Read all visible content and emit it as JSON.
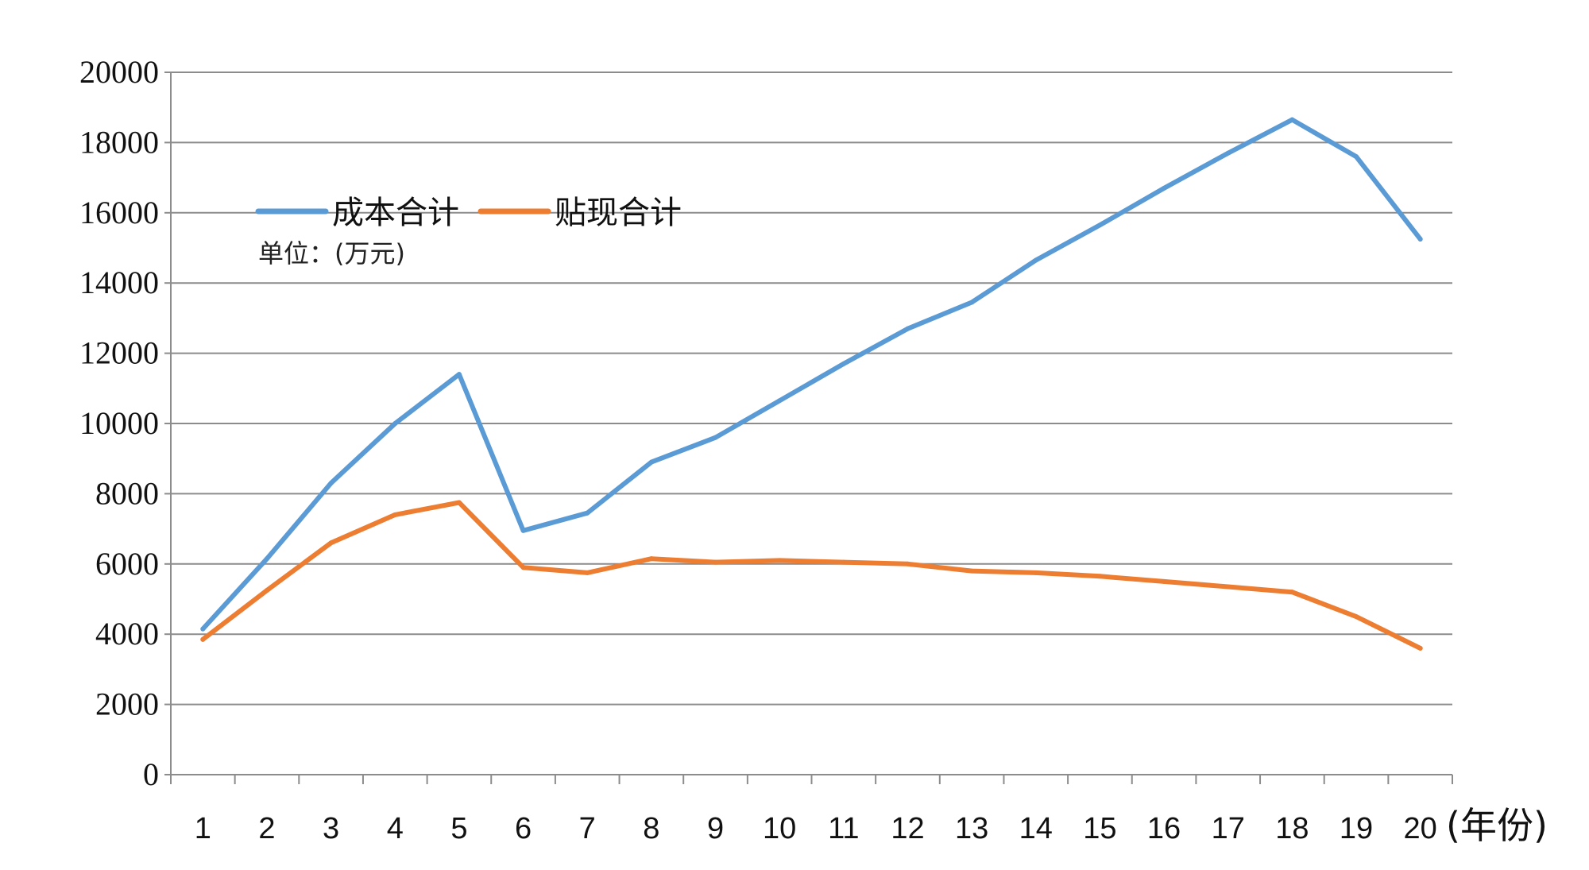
{
  "chart_data": {
    "type": "line",
    "categories": [
      "1",
      "2",
      "3",
      "4",
      "5",
      "6",
      "7",
      "8",
      "9",
      "10",
      "11",
      "12",
      "13",
      "14",
      "15",
      "16",
      "17",
      "18",
      "19",
      "20"
    ],
    "series": [
      {
        "name": "成本合计",
        "color": "#5b9bd5",
        "values": [
          4150,
          6150,
          8300,
          10000,
          11400,
          6950,
          7450,
          8900,
          9600,
          10650,
          11700,
          12700,
          13450,
          14650,
          15650,
          16700,
          17700,
          18650,
          17600,
          15250
        ]
      },
      {
        "name": "贴现合计",
        "color": "#ed7d31",
        "values": [
          3850,
          5250,
          6600,
          7400,
          7750,
          5900,
          5750,
          6150,
          6050,
          6100,
          6050,
          6000,
          5800,
          5750,
          5650,
          5500,
          5350,
          5200,
          4500,
          3600
        ]
      }
    ],
    "yticks": [
      "0",
      "2000",
      "4000",
      "6000",
      "8000",
      "10000",
      "12000",
      "14000",
      "16000",
      "18000",
      "20000"
    ],
    "ylim": [
      0,
      20000
    ],
    "x_unit_label": "(年份)",
    "note": "单位：(万元)",
    "grid": true,
    "legend_position": "top-left"
  }
}
